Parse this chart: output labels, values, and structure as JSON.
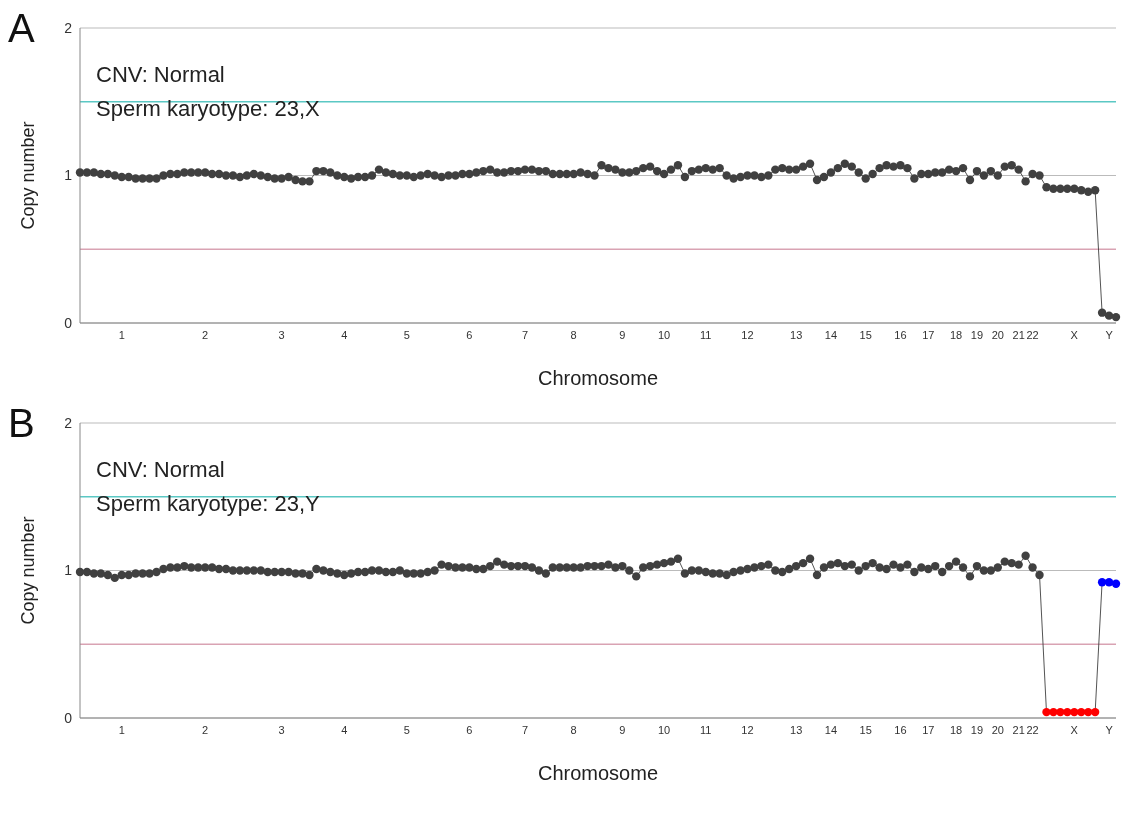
{
  "chart_data": [
    {
      "type": "line",
      "title": "A",
      "xlabel": "Chromosome",
      "ylabel": "Copy number",
      "annotations": [
        "CNV: Normal",
        "Sperm karyotype: 23,X"
      ],
      "ylim": [
        0,
        2
      ],
      "yticks": [
        0,
        1,
        2
      ],
      "grid": "y",
      "marker": "circle",
      "ref_lines": [
        {
          "axis": "y",
          "value": 1.5,
          "color": "#5bc8c4"
        },
        {
          "axis": "y",
          "value": 0.5,
          "color": "#d9a3b3"
        }
      ],
      "categories": [
        null,
        null,
        null,
        null,
        null,
        null,
        "1",
        null,
        null,
        null,
        null,
        null,
        null,
        null,
        null,
        null,
        null,
        null,
        "2",
        null,
        null,
        null,
        null,
        null,
        null,
        null,
        null,
        null,
        null,
        "3",
        null,
        null,
        null,
        null,
        null,
        null,
        null,
        null,
        "4",
        null,
        null,
        null,
        null,
        null,
        null,
        null,
        null,
        "5",
        null,
        null,
        null,
        null,
        null,
        null,
        null,
        null,
        "6",
        null,
        null,
        null,
        null,
        null,
        null,
        null,
        "7",
        null,
        null,
        null,
        null,
        null,
        null,
        "8",
        null,
        null,
        null,
        null,
        null,
        null,
        "9",
        null,
        null,
        null,
        null,
        null,
        "10",
        null,
        null,
        null,
        null,
        null,
        "11",
        null,
        null,
        null,
        null,
        null,
        "12",
        null,
        null,
        null,
        null,
        null,
        null,
        "13",
        null,
        null,
        null,
        null,
        "14",
        null,
        null,
        null,
        null,
        "15",
        null,
        null,
        null,
        null,
        "16",
        null,
        null,
        null,
        "17",
        null,
        null,
        null,
        "18",
        null,
        null,
        "19",
        null,
        null,
        "20",
        null,
        null,
        "21",
        null,
        "22",
        null,
        null,
        null,
        null,
        null,
        "X",
        null,
        null,
        null,
        null,
        "Y",
        null
      ],
      "series": [
        {
          "color": "#404040",
          "values": [
            1.02,
            1.02,
            1.02,
            1.01,
            1.01,
            1.0,
            0.99,
            0.99,
            0.98,
            0.98,
            0.98,
            0.98,
            1.0,
            1.01,
            1.01,
            1.02,
            1.02,
            1.02,
            1.02,
            1.01,
            1.01,
            1.0,
            1.0,
            0.99,
            1.0,
            1.01,
            1.0,
            0.99,
            0.98,
            0.98,
            0.99,
            0.97,
            0.96,
            0.96,
            1.03,
            1.03,
            1.02,
            1.0,
            0.99,
            0.98,
            0.99,
            0.99,
            1.0,
            1.04,
            1.02,
            1.01,
            1.0,
            1.0,
            0.99,
            1.0,
            1.01,
            1.0,
            0.99,
            1.0,
            1.0,
            1.01,
            1.01,
            1.02,
            1.03,
            1.04,
            1.02,
            1.02,
            1.03,
            1.03,
            1.04,
            1.04,
            1.03,
            1.03,
            1.01,
            1.01,
            1.01,
            1.01,
            1.02,
            1.01,
            1.0,
            1.07,
            1.05,
            1.04,
            1.02,
            1.02,
            1.03,
            1.05,
            1.06,
            1.03,
            1.01,
            1.04,
            1.07,
            0.99,
            1.03,
            1.04,
            1.05,
            1.04,
            1.05,
            1.0,
            0.98,
            0.99,
            1.0,
            1.0,
            0.99,
            1.0,
            1.04,
            1.05,
            1.04,
            1.04,
            1.06,
            1.08,
            0.97,
            0.99,
            1.02,
            1.05,
            1.08,
            1.06,
            1.02,
            0.98,
            1.01,
            1.05,
            1.07,
            1.06,
            1.07,
            1.05,
            0.98,
            1.01,
            1.01,
            1.02,
            1.02,
            1.04,
            1.03,
            1.05,
            0.97,
            1.03,
            1.0,
            1.03,
            1.0,
            1.06,
            1.07,
            1.04,
            0.96,
            1.01,
            1.0,
            0.92,
            0.91,
            0.91,
            0.91,
            0.91,
            0.9,
            0.89,
            0.9,
            0.07,
            0.05,
            0.04
          ]
        }
      ]
    },
    {
      "type": "line",
      "title": "B",
      "xlabel": "Chromosome",
      "ylabel": "Copy number",
      "annotations": [
        "CNV: Normal",
        "Sperm karyotype: 23,Y"
      ],
      "ylim": [
        0,
        2
      ],
      "yticks": [
        0,
        1,
        2
      ],
      "grid": "y",
      "marker": "circle",
      "ref_lines": [
        {
          "axis": "y",
          "value": 1.5,
          "color": "#5bc8c4"
        },
        {
          "axis": "y",
          "value": 0.5,
          "color": "#d9a3b3"
        }
      ],
      "categories": [
        null,
        null,
        null,
        null,
        null,
        null,
        "1",
        null,
        null,
        null,
        null,
        null,
        null,
        null,
        null,
        null,
        null,
        null,
        "2",
        null,
        null,
        null,
        null,
        null,
        null,
        null,
        null,
        null,
        null,
        "3",
        null,
        null,
        null,
        null,
        null,
        null,
        null,
        null,
        "4",
        null,
        null,
        null,
        null,
        null,
        null,
        null,
        null,
        "5",
        null,
        null,
        null,
        null,
        null,
        null,
        null,
        null,
        "6",
        null,
        null,
        null,
        null,
        null,
        null,
        null,
        "7",
        null,
        null,
        null,
        null,
        null,
        null,
        "8",
        null,
        null,
        null,
        null,
        null,
        null,
        "9",
        null,
        null,
        null,
        null,
        null,
        "10",
        null,
        null,
        null,
        null,
        null,
        "11",
        null,
        null,
        null,
        null,
        null,
        "12",
        null,
        null,
        null,
        null,
        null,
        null,
        "13",
        null,
        null,
        null,
        null,
        "14",
        null,
        null,
        null,
        null,
        "15",
        null,
        null,
        null,
        null,
        "16",
        null,
        null,
        null,
        "17",
        null,
        null,
        null,
        "18",
        null,
        null,
        "19",
        null,
        null,
        "20",
        null,
        null,
        "21",
        null,
        "22",
        null,
        null,
        null,
        null,
        null,
        "X",
        null,
        null,
        null,
        null,
        "Y",
        null
      ],
      "series": [
        {
          "color": "#404040",
          "values": [
            0.99,
            0.99,
            0.98,
            0.98,
            0.97,
            0.95,
            0.97,
            0.97,
            0.98,
            0.98,
            0.98,
            0.99,
            1.01,
            1.02,
            1.02,
            1.03,
            1.02,
            1.02,
            1.02,
            1.02,
            1.01,
            1.01,
            1.0,
            1.0,
            1.0,
            1.0,
            1.0,
            0.99,
            0.99,
            0.99,
            0.99,
            0.98,
            0.98,
            0.97,
            1.01,
            1.0,
            0.99,
            0.98,
            0.97,
            0.98,
            0.99,
            0.99,
            1.0,
            1.0,
            0.99,
            0.99,
            1.0,
            0.98,
            0.98,
            0.98,
            0.99,
            1.0,
            1.04,
            1.03,
            1.02,
            1.02,
            1.02,
            1.01,
            1.01,
            1.03,
            1.06,
            1.04,
            1.03,
            1.03,
            1.03,
            1.02,
            1.0,
            0.98,
            1.02,
            1.02,
            1.02,
            1.02,
            1.02,
            1.03,
            1.03,
            1.03,
            1.04,
            1.02,
            1.03,
            1.0,
            0.96,
            1.02,
            1.03,
            1.04,
            1.05,
            1.06,
            1.08,
            0.98,
            1.0,
            1.0,
            0.99,
            0.98,
            0.98,
            0.97,
            0.99,
            1.0,
            1.01,
            1.02,
            1.03,
            1.04,
            1.0,
            0.99,
            1.01,
            1.03,
            1.05,
            1.08,
            0.97,
            1.02,
            1.04,
            1.05,
            1.03,
            1.04,
            1.0,
            1.03,
            1.05,
            1.02,
            1.01,
            1.04,
            1.02,
            1.04,
            0.99,
            1.02,
            1.01,
            1.03,
            0.99,
            1.03,
            1.06,
            1.02,
            0.96,
            1.03,
            1.0,
            1.0,
            1.02,
            1.06,
            1.05,
            1.04,
            1.1,
            1.02,
            0.97,
            0.04,
            0.04,
            0.04,
            0.04,
            0.04,
            0.04,
            0.04,
            0.04,
            0.92,
            0.92,
            0.91
          ],
          "colors": [
            "#404040",
            "#404040",
            "#404040",
            "#404040",
            "#404040",
            "#404040",
            "#404040",
            "#404040",
            "#404040",
            "#404040",
            "#404040",
            "#404040",
            "#404040",
            "#404040",
            "#404040",
            "#404040",
            "#404040",
            "#404040",
            "#404040",
            "#404040",
            "#404040",
            "#404040",
            "#404040",
            "#404040",
            "#404040",
            "#404040",
            "#404040",
            "#404040",
            "#404040",
            "#404040",
            "#404040",
            "#404040",
            "#404040",
            "#404040",
            "#404040",
            "#404040",
            "#404040",
            "#404040",
            "#404040",
            "#404040",
            "#404040",
            "#404040",
            "#404040",
            "#404040",
            "#404040",
            "#404040",
            "#404040",
            "#404040",
            "#404040",
            "#404040",
            "#404040",
            "#404040",
            "#404040",
            "#404040",
            "#404040",
            "#404040",
            "#404040",
            "#404040",
            "#404040",
            "#404040",
            "#404040",
            "#404040",
            "#404040",
            "#404040",
            "#404040",
            "#404040",
            "#404040",
            "#404040",
            "#404040",
            "#404040",
            "#404040",
            "#404040",
            "#404040",
            "#404040",
            "#404040",
            "#404040",
            "#404040",
            "#404040",
            "#404040",
            "#404040",
            "#404040",
            "#404040",
            "#404040",
            "#404040",
            "#404040",
            "#404040",
            "#404040",
            "#404040",
            "#404040",
            "#404040",
            "#404040",
            "#404040",
            "#404040",
            "#404040",
            "#404040",
            "#404040",
            "#404040",
            "#404040",
            "#404040",
            "#404040",
            "#404040",
            "#404040",
            "#404040",
            "#404040",
            "#404040",
            "#404040",
            "#404040",
            "#404040",
            "#404040",
            "#404040",
            "#404040",
            "#404040",
            "#404040",
            "#404040",
            "#404040",
            "#404040",
            "#404040",
            "#404040",
            "#404040",
            "#404040",
            "#404040",
            "#404040",
            "#404040",
            "#404040",
            "#404040",
            "#404040",
            "#404040",
            "#404040",
            "#404040",
            "#404040",
            "#404040",
            "#404040",
            "#404040",
            "#404040",
            "#404040",
            "#404040",
            "#404040",
            "#404040",
            "#404040",
            "#ff0000",
            "#ff0000",
            "#ff0000",
            "#ff0000",
            "#ff0000",
            "#ff0000",
            "#ff0000",
            "#ff0000",
            "#0000ff",
            "#0000ff",
            "#0000ff"
          ]
        }
      ]
    }
  ]
}
